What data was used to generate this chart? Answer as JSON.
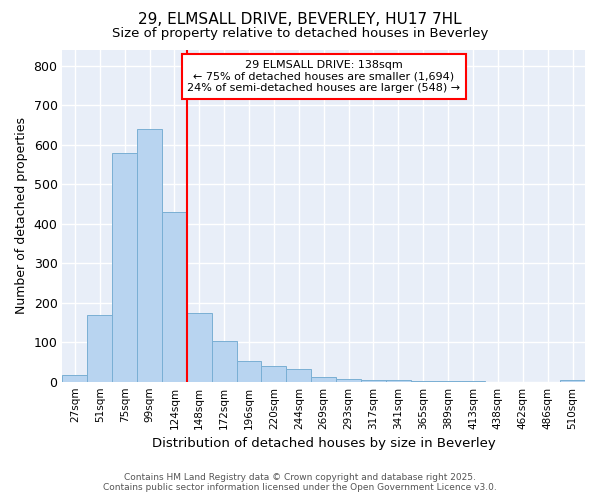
{
  "title": "29, ELMSALL DRIVE, BEVERLEY, HU17 7HL",
  "subtitle": "Size of property relative to detached houses in Beverley",
  "xlabel": "Distribution of detached houses by size in Beverley",
  "ylabel": "Number of detached properties",
  "bins": [
    "27sqm",
    "51sqm",
    "75sqm",
    "99sqm",
    "124sqm",
    "148sqm",
    "172sqm",
    "196sqm",
    "220sqm",
    "244sqm",
    "269sqm",
    "293sqm",
    "317sqm",
    "341sqm",
    "365sqm",
    "389sqm",
    "413sqm",
    "438sqm",
    "462sqm",
    "486sqm",
    "510sqm"
  ],
  "values": [
    18,
    168,
    580,
    640,
    430,
    175,
    102,
    52,
    40,
    33,
    12,
    8,
    5,
    3,
    2,
    1,
    1,
    0,
    0,
    0,
    4
  ],
  "bar_color": "#b8d4f0",
  "bar_edge_color": "#7aafd4",
  "vline_color": "red",
  "annotation_title": "29 ELMSALL DRIVE: 138sqm",
  "annotation_line1": "← 75% of detached houses are smaller (1,694)",
  "annotation_line2": "24% of semi-detached houses are larger (548) →",
  "annotation_box_color": "red",
  "annotation_bg": "white",
  "ylim": [
    0,
    840
  ],
  "yticks": [
    0,
    100,
    200,
    300,
    400,
    500,
    600,
    700,
    800
  ],
  "footer1": "Contains HM Land Registry data © Crown copyright and database right 2025.",
  "footer2": "Contains public sector information licensed under the Open Government Licence v3.0.",
  "bg_color": "#ffffff",
  "plot_bg_color": "#e8eef8",
  "grid_color": "#ffffff"
}
